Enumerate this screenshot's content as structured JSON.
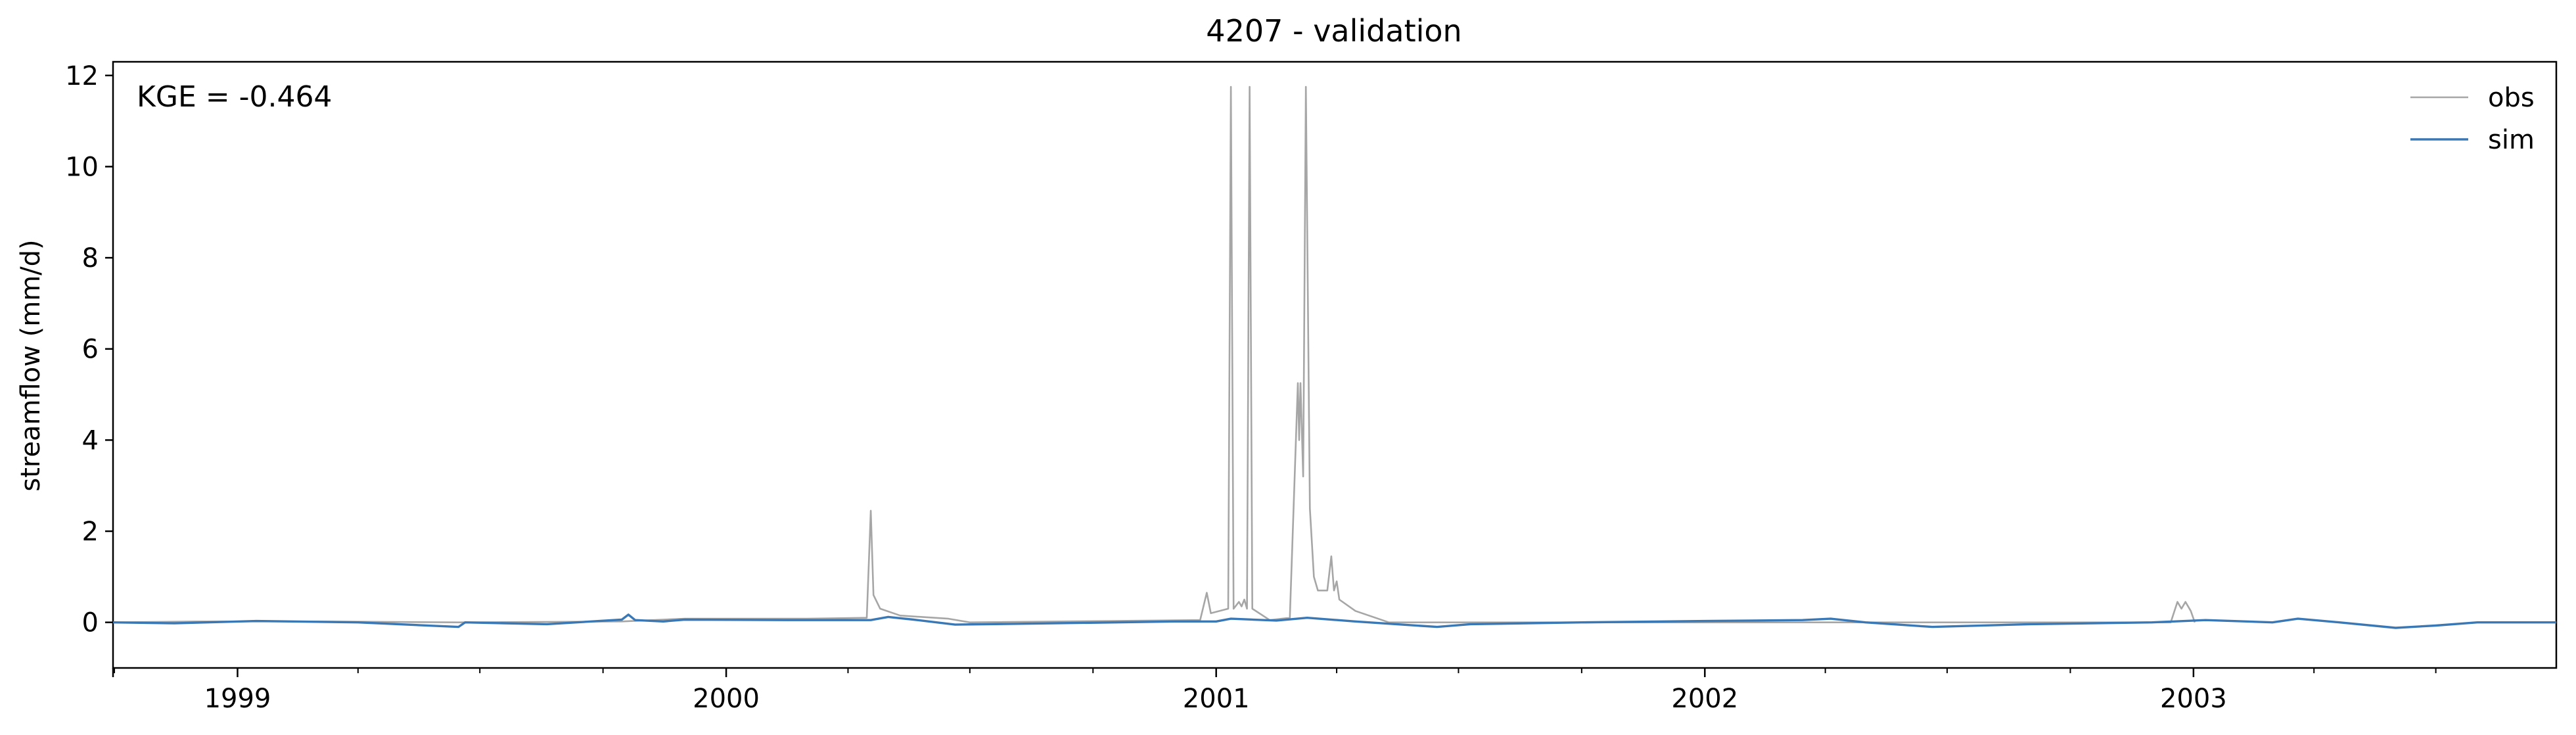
{
  "chart_data": {
    "type": "line",
    "title": "4207 - validation",
    "xlabel": "",
    "ylabel": "streamflow (mm/d)",
    "annotation": "KGE = -0.464",
    "xlim": [
      "1998-09-30",
      "2003-09-29"
    ],
    "ylim": [
      -1,
      12.3
    ],
    "y_ticks": [
      0,
      2,
      4,
      6,
      8,
      10,
      12
    ],
    "y_tick_labels": [
      "0",
      "2",
      "4",
      "6",
      "8",
      "10",
      "12"
    ],
    "x_ticks": [
      "1999-01-01",
      "2000-01-01",
      "2001-01-01",
      "2002-01-01",
      "2003-01-01"
    ],
    "x_tick_labels": [
      "1999",
      "2000",
      "2001",
      "2002",
      "2003"
    ],
    "grid": false,
    "legend_position": "top-right",
    "series": [
      {
        "name": "obs",
        "color": "#a6a6a6",
        "points": [
          [
            "1998-09-30",
            0.0
          ],
          [
            "1998-12-01",
            0.02
          ],
          [
            "1999-03-01",
            0.02
          ],
          [
            "1999-06-15",
            0.0
          ],
          [
            "1999-10-15",
            0.02
          ],
          [
            "1999-12-01",
            0.08
          ],
          [
            "2000-03-01",
            0.08
          ],
          [
            "2000-04-15",
            0.1
          ],
          [
            "2000-04-18",
            2.45
          ],
          [
            "2000-04-20",
            0.6
          ],
          [
            "2000-04-25",
            0.3
          ],
          [
            "2000-05-10",
            0.15
          ],
          [
            "2000-06-15",
            0.08
          ],
          [
            "2000-07-01",
            0.0
          ],
          [
            "2000-12-20",
            0.05
          ],
          [
            "2000-12-25",
            0.65
          ],
          [
            "2000-12-28",
            0.2
          ],
          [
            "2001-01-10",
            0.3
          ],
          [
            "2001-01-12",
            11.75
          ],
          [
            "2001-01-14",
            0.3
          ],
          [
            "2001-01-18",
            0.45
          ],
          [
            "2001-01-20",
            0.35
          ],
          [
            "2001-01-22",
            0.5
          ],
          [
            "2001-01-24",
            0.3
          ],
          [
            "2001-01-26",
            11.75
          ],
          [
            "2001-01-28",
            0.3
          ],
          [
            "2001-02-10",
            0.05
          ],
          [
            "2001-02-25",
            0.1
          ],
          [
            "2001-03-03",
            5.25
          ],
          [
            "2001-03-04",
            4.0
          ],
          [
            "2001-03-05",
            5.25
          ],
          [
            "2001-03-07",
            3.2
          ],
          [
            "2001-03-09",
            11.75
          ],
          [
            "2001-03-12",
            2.5
          ],
          [
            "2001-03-15",
            1.0
          ],
          [
            "2001-03-18",
            0.7
          ],
          [
            "2001-03-25",
            0.7
          ],
          [
            "2001-03-28",
            1.45
          ],
          [
            "2001-03-30",
            0.7
          ],
          [
            "2001-04-01",
            0.9
          ],
          [
            "2001-04-03",
            0.5
          ],
          [
            "2001-04-15",
            0.25
          ],
          [
            "2001-04-30",
            0.1
          ],
          [
            "2001-05-10",
            0.0
          ],
          [
            "2002-12-15",
            0.0
          ],
          [
            "2002-12-20",
            0.45
          ],
          [
            "2002-12-23",
            0.3
          ],
          [
            "2002-12-26",
            0.45
          ],
          [
            "2002-12-30",
            0.25
          ],
          [
            "2003-01-02",
            0.0
          ]
        ]
      },
      {
        "name": "sim",
        "color": "#3a78b5",
        "points": [
          [
            "1998-09-30",
            0.0
          ],
          [
            "1998-11-15",
            -0.02
          ],
          [
            "1999-01-15",
            0.03
          ],
          [
            "1999-04-01",
            0.0
          ],
          [
            "1999-06-15",
            -0.1
          ],
          [
            "1999-06-20",
            0.0
          ],
          [
            "1999-08-20",
            -0.04
          ],
          [
            "1999-10-15",
            0.06
          ],
          [
            "1999-10-20",
            0.17
          ],
          [
            "1999-10-25",
            0.05
          ],
          [
            "1999-11-15",
            0.02
          ],
          [
            "1999-12-01",
            0.06
          ],
          [
            "2000-02-15",
            0.05
          ],
          [
            "2000-04-18",
            0.05
          ],
          [
            "2000-05-01",
            0.12
          ],
          [
            "2000-05-20",
            0.06
          ],
          [
            "2000-06-20",
            -0.05
          ],
          [
            "2000-09-01",
            -0.02
          ],
          [
            "2000-12-01",
            0.02
          ],
          [
            "2001-01-01",
            0.02
          ],
          [
            "2001-01-12",
            0.08
          ],
          [
            "2001-02-15",
            0.04
          ],
          [
            "2001-03-10",
            0.1
          ],
          [
            "2001-04-15",
            0.02
          ],
          [
            "2001-06-15",
            -0.1
          ],
          [
            "2001-07-10",
            -0.04
          ],
          [
            "2001-10-01",
            0.0
          ],
          [
            "2002-01-01",
            0.03
          ],
          [
            "2002-03-15",
            0.05
          ],
          [
            "2002-04-05",
            0.08
          ],
          [
            "2002-05-01",
            0.0
          ],
          [
            "2002-06-20",
            -0.1
          ],
          [
            "2002-09-01",
            -0.04
          ],
          [
            "2002-12-01",
            0.0
          ],
          [
            "2003-01-10",
            0.05
          ],
          [
            "2003-03-01",
            0.0
          ],
          [
            "2003-03-20",
            0.08
          ],
          [
            "2003-04-20",
            0.0
          ],
          [
            "2003-06-01",
            -0.12
          ],
          [
            "2003-07-01",
            -0.07
          ],
          [
            "2003-08-01",
            0.0
          ],
          [
            "2003-09-29",
            0.0
          ]
        ]
      }
    ]
  }
}
